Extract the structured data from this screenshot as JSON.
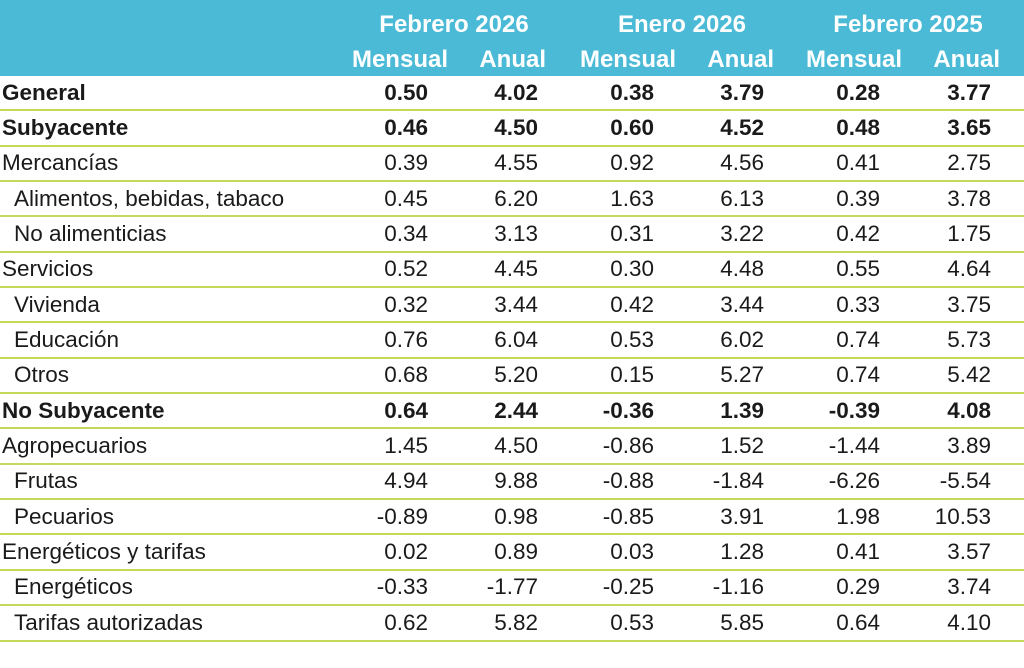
{
  "header": {
    "periods": [
      "Febrero 2026",
      "Enero 2026",
      "Febrero 2025"
    ],
    "subcols": [
      "Mensual",
      "Anual",
      "Mensual",
      "Anual",
      "Mensual",
      "Anual"
    ]
  },
  "rows": [
    {
      "label": "General",
      "bold": true,
      "indent": false,
      "values": [
        "0.50",
        "4.02",
        "0.38",
        "3.79",
        "0.28",
        "3.77"
      ]
    },
    {
      "label": "Subyacente",
      "bold": true,
      "indent": false,
      "values": [
        "0.46",
        "4.50",
        "0.60",
        "4.52",
        "0.48",
        "3.65"
      ]
    },
    {
      "label": "Mercancías",
      "bold": false,
      "indent": false,
      "values": [
        "0.39",
        "4.55",
        "0.92",
        "4.56",
        "0.41",
        "2.75"
      ]
    },
    {
      "label": "Alimentos, bebidas, tabaco",
      "bold": false,
      "indent": true,
      "values": [
        "0.45",
        "6.20",
        "1.63",
        "6.13",
        "0.39",
        "3.78"
      ]
    },
    {
      "label": "No alimenticias",
      "bold": false,
      "indent": true,
      "values": [
        "0.34",
        "3.13",
        "0.31",
        "3.22",
        "0.42",
        "1.75"
      ]
    },
    {
      "label": "Servicios",
      "bold": false,
      "indent": false,
      "values": [
        "0.52",
        "4.45",
        "0.30",
        "4.48",
        "0.55",
        "4.64"
      ]
    },
    {
      "label": "Vivienda",
      "bold": false,
      "indent": true,
      "values": [
        "0.32",
        "3.44",
        "0.42",
        "3.44",
        "0.33",
        "3.75"
      ]
    },
    {
      "label": "Educación",
      "bold": false,
      "indent": true,
      "values": [
        "0.76",
        "6.04",
        "0.53",
        "6.02",
        "0.74",
        "5.73"
      ]
    },
    {
      "label": "Otros",
      "bold": false,
      "indent": true,
      "values": [
        "0.68",
        "5.20",
        "0.15",
        "5.27",
        "0.74",
        "5.42"
      ]
    },
    {
      "label": "No Subyacente",
      "bold": true,
      "indent": false,
      "values": [
        "0.64",
        "2.44",
        "-0.36",
        "1.39",
        "-0.39",
        "4.08"
      ]
    },
    {
      "label": "Agropecuarios",
      "bold": false,
      "indent": false,
      "values": [
        "1.45",
        "4.50",
        "-0.86",
        "1.52",
        "-1.44",
        "3.89"
      ]
    },
    {
      "label": "Frutas",
      "bold": false,
      "indent": true,
      "values": [
        "4.94",
        "9.88",
        "-0.88",
        "-1.84",
        "-6.26",
        "-5.54"
      ]
    },
    {
      "label": "Pecuarios",
      "bold": false,
      "indent": true,
      "values": [
        "-0.89",
        "0.98",
        "-0.85",
        "3.91",
        "1.98",
        "10.53"
      ]
    },
    {
      "label": "Energéticos y tarifas",
      "bold": false,
      "indent": false,
      "values": [
        "0.02",
        "0.89",
        "0.03",
        "1.28",
        "0.41",
        "3.57"
      ]
    },
    {
      "label": "Energéticos",
      "bold": false,
      "indent": true,
      "values": [
        "-0.33",
        "-1.77",
        "-0.25",
        "-1.16",
        "0.29",
        "3.74"
      ]
    },
    {
      "label": "Tarifas autorizadas",
      "bold": false,
      "indent": true,
      "values": [
        "0.62",
        "5.82",
        "0.53",
        "5.85",
        "0.64",
        "4.10"
      ]
    }
  ],
  "colors": {
    "header_bg": "#4bbad6",
    "row_rule": "#c4d95a"
  }
}
